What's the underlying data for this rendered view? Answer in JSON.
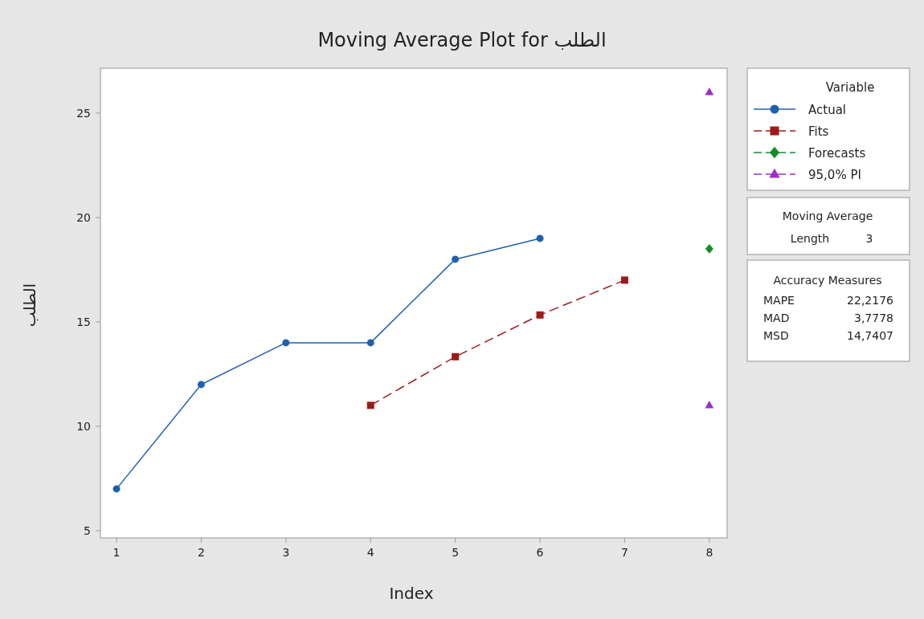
{
  "chart_data": {
    "type": "line",
    "title": "Moving Average Plot for الطلب",
    "xlabel": "Index",
    "ylabel": "الطلب",
    "legend_title": "Variable",
    "legend": "right",
    "series": [
      {
        "name": "Actual",
        "color": "#1f5fb0",
        "marker": "circle",
        "line_style": "solid",
        "x": [
          1,
          2,
          3,
          4,
          5,
          6
        ],
        "values": [
          7,
          12,
          14,
          14,
          18,
          19
        ]
      },
      {
        "name": "Fits",
        "color": "#9e1a1a",
        "marker": "square",
        "line_style": "dashed",
        "x": [
          4,
          5,
          6,
          7
        ],
        "values": [
          11,
          13.33,
          15.33,
          17
        ]
      },
      {
        "name": "Forecasts",
        "type": "scatter",
        "color": "#168a2a",
        "marker": "diamond",
        "line_style": "dashed",
        "x": [
          8
        ],
        "values": [
          18.5
        ]
      },
      {
        "name": "95,0% PI",
        "type": "scatter",
        "color": "#9b2fc9",
        "marker": "triangle",
        "line_style": "dashed",
        "x": [
          8,
          8
        ],
        "values": [
          26,
          11
        ]
      }
    ],
    "xlim": [
      0.81,
      8.21
    ],
    "ylim": [
      4.65,
      27.15
    ],
    "xticks": [
      1,
      2,
      3,
      4,
      5,
      6,
      7,
      8
    ],
    "yticks": [
      5,
      10,
      15,
      20,
      25
    ],
    "grid": false,
    "annotations": [
      "Moving Average",
      "Length",
      "3",
      "Accuracy Measures",
      "MAPE",
      "22,2176",
      "MAD",
      "3,7778",
      "MSD",
      "14,7407"
    ]
  }
}
